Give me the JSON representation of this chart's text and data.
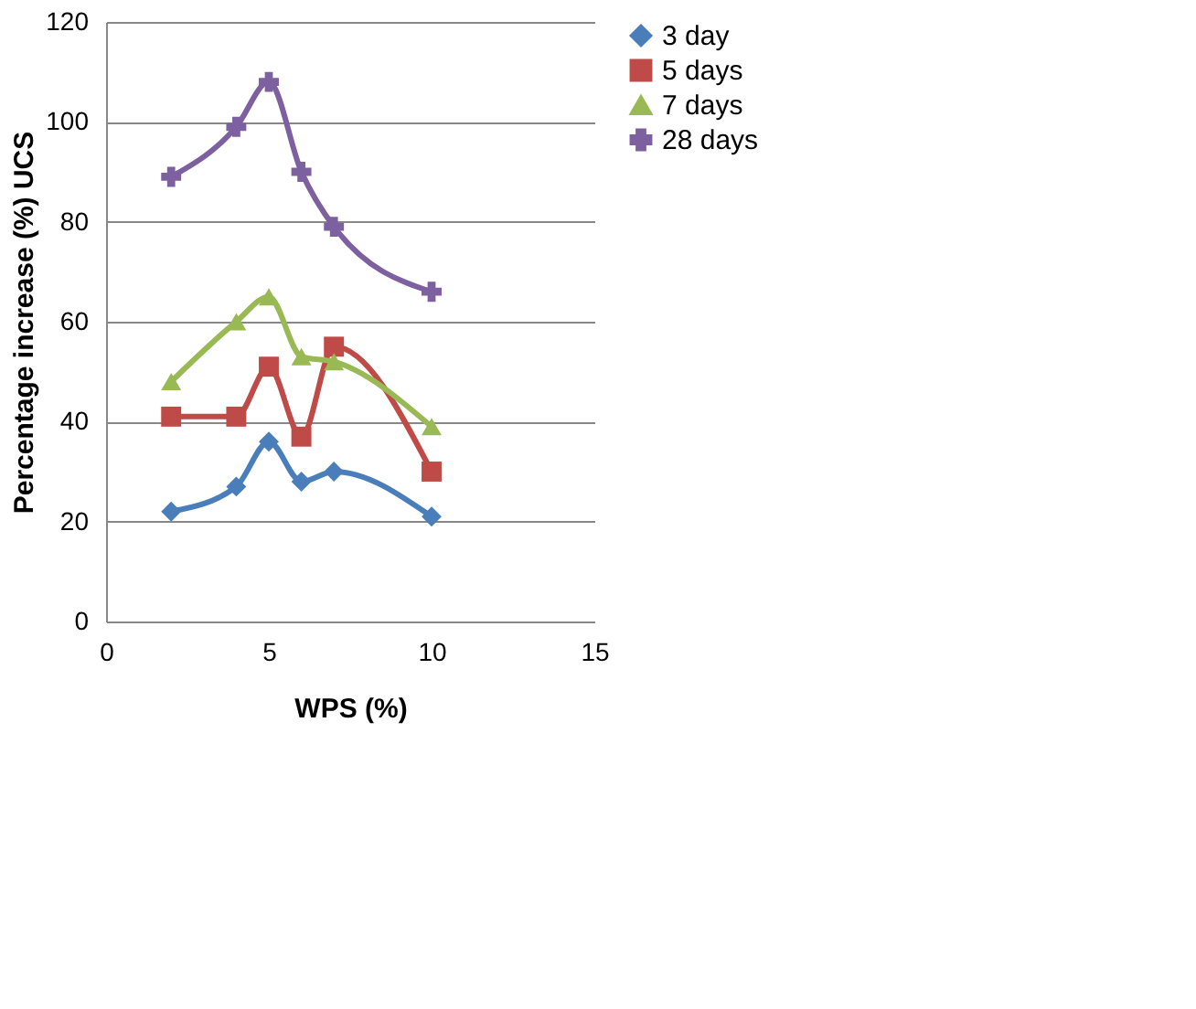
{
  "chart_data": {
    "type": "line",
    "xlabel": "WPS (%)",
    "ylabel": "Percentage increase (%) UCS",
    "x": [
      2,
      4,
      5,
      6,
      7,
      10
    ],
    "series": [
      {
        "name": "3 day",
        "color": "#4a7ebb",
        "marker": "diamond",
        "values": [
          22,
          27,
          36,
          28,
          30,
          21
        ]
      },
      {
        "name": "5 days",
        "color": "#be4b48",
        "marker": "square",
        "values": [
          41,
          41,
          51,
          37,
          55,
          30
        ]
      },
      {
        "name": "7 days",
        "color": "#98b954",
        "marker": "triangle",
        "values": [
          48,
          60,
          65,
          53,
          52,
          39
        ]
      },
      {
        "name": "28 days",
        "color": "#7d60a0",
        "marker": "cross",
        "values": [
          89,
          99,
          108,
          90,
          79,
          66
        ]
      }
    ],
    "xlim": [
      0,
      15
    ],
    "xticks": [
      0,
      5,
      10,
      15
    ],
    "ylim": [
      0,
      120
    ],
    "yticks": [
      0,
      20,
      40,
      60,
      80,
      100,
      120
    ],
    "grid": "y",
    "legend": "right"
  }
}
